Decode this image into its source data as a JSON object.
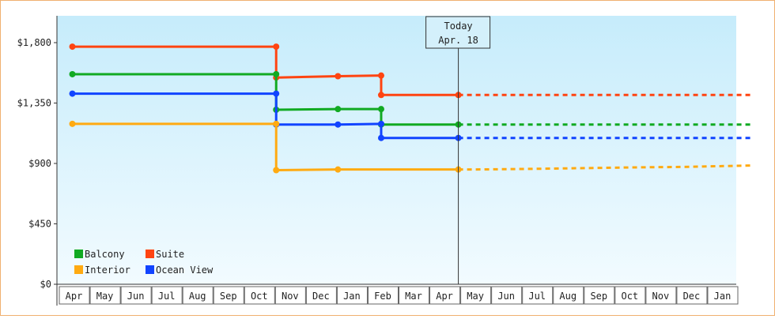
{
  "chart_data": {
    "type": "line",
    "step": true,
    "ylim": [
      0,
      2000
    ],
    "yticks": [
      {
        "value": 0,
        "label": "$0"
      },
      {
        "value": 450,
        "label": "$450"
      },
      {
        "value": 900,
        "label": "$900"
      },
      {
        "value": 1350,
        "label": "$1,350"
      },
      {
        "value": 1800,
        "label": "$1,800"
      }
    ],
    "months": [
      "Apr",
      "May",
      "Jun",
      "Jul",
      "Aug",
      "Sep",
      "Oct",
      "Nov",
      "Dec",
      "Jan",
      "Feb",
      "Mar",
      "Apr",
      "May",
      "Jun",
      "Jul",
      "Aug",
      "Sep",
      "Oct",
      "Nov",
      "Dec",
      "Jan"
    ],
    "today": {
      "line1": "Today",
      "line2": "Apr. 18",
      "x": 12.5
    },
    "series": [
      {
        "name": "Suite",
        "color": "#ff4411",
        "points": [
          [
            0,
            1770
          ],
          [
            6.6,
            1770
          ],
          [
            6.6,
            1540
          ],
          [
            8.6,
            1550
          ],
          [
            10.0,
            1555
          ],
          [
            10.0,
            1410
          ],
          [
            12.5,
            1410
          ]
        ],
        "markers": [
          [
            0,
            1770
          ],
          [
            6.6,
            1770
          ],
          [
            6.6,
            1540
          ],
          [
            8.6,
            1550
          ],
          [
            10.0,
            1555
          ],
          [
            10.0,
            1410
          ],
          [
            12.5,
            1410
          ]
        ],
        "forecast": [
          [
            12.5,
            1410
          ],
          [
            22,
            1410
          ]
        ]
      },
      {
        "name": "Balcony",
        "color": "#11aa22",
        "points": [
          [
            0,
            1565
          ],
          [
            6.6,
            1565
          ],
          [
            6.6,
            1300
          ],
          [
            8.6,
            1305
          ],
          [
            10.0,
            1305
          ],
          [
            10.0,
            1190
          ],
          [
            12.5,
            1190
          ]
        ],
        "markers": [
          [
            0,
            1565
          ],
          [
            6.6,
            1565
          ],
          [
            6.6,
            1300
          ],
          [
            8.6,
            1305
          ],
          [
            10.0,
            1305
          ],
          [
            10.0,
            1190
          ],
          [
            12.5,
            1190
          ]
        ],
        "forecast": [
          [
            12.5,
            1190
          ],
          [
            22,
            1190
          ]
        ]
      },
      {
        "name": "Ocean View",
        "color": "#1144ff",
        "points": [
          [
            0,
            1420
          ],
          [
            6.6,
            1420
          ],
          [
            6.6,
            1190
          ],
          [
            8.6,
            1190
          ],
          [
            10.0,
            1195
          ],
          [
            10.0,
            1090
          ],
          [
            12.5,
            1090
          ]
        ],
        "markers": [
          [
            0,
            1420
          ],
          [
            6.6,
            1420
          ],
          [
            6.6,
            1190
          ],
          [
            8.6,
            1190
          ],
          [
            10.0,
            1195
          ],
          [
            10.0,
            1090
          ],
          [
            12.5,
            1090
          ]
        ],
        "forecast": [
          [
            12.5,
            1090
          ],
          [
            22,
            1090
          ]
        ]
      },
      {
        "name": "Interior",
        "color": "#ffaa11",
        "points": [
          [
            0,
            1195
          ],
          [
            6.6,
            1195
          ],
          [
            6.6,
            850
          ],
          [
            8.6,
            855
          ],
          [
            12.5,
            855
          ]
        ],
        "markers": [
          [
            0,
            1195
          ],
          [
            6.6,
            1195
          ],
          [
            6.6,
            850
          ],
          [
            8.6,
            855
          ],
          [
            12.5,
            855
          ]
        ],
        "forecast": [
          [
            12.5,
            855
          ],
          [
            13.0,
            855
          ],
          [
            15.0,
            860
          ],
          [
            18.0,
            870
          ],
          [
            20.0,
            875
          ],
          [
            22,
            885
          ]
        ]
      }
    ],
    "legend": [
      {
        "name": "Balcony",
        "color": "#11aa22"
      },
      {
        "name": "Suite",
        "color": "#ff4411"
      },
      {
        "name": "Interior",
        "color": "#ffaa11"
      },
      {
        "name": "Ocean View",
        "color": "#1144ff"
      }
    ]
  }
}
